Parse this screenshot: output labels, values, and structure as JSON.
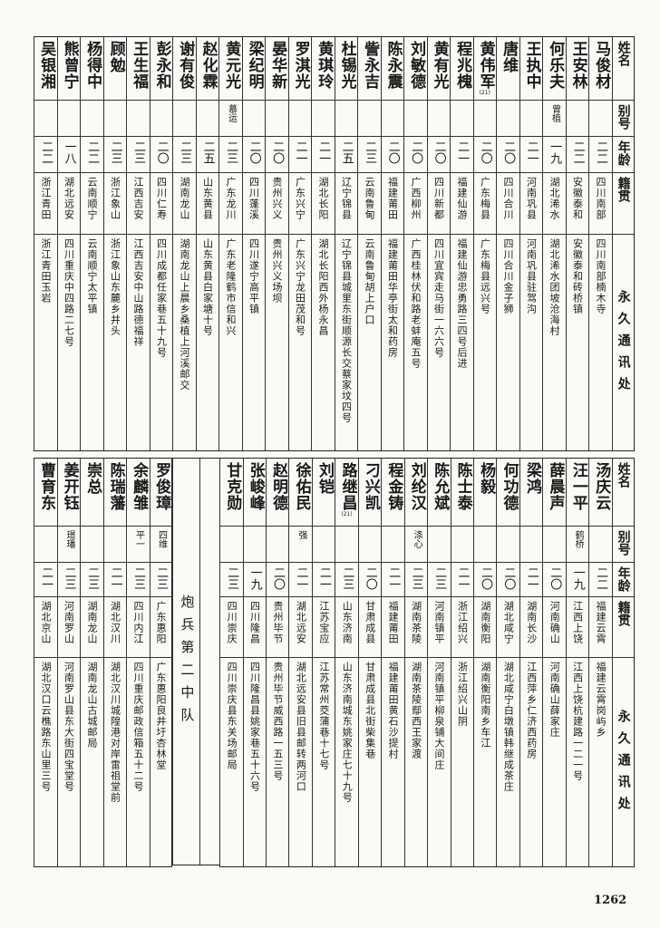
{
  "headers": {
    "name": "姓名",
    "alias": "别号",
    "age": "年龄",
    "origin": "籍贯",
    "address": "永久通讯处"
  },
  "top_table": [
    {
      "name": "马俊材",
      "alias": "",
      "age": "二二",
      "origin": "四川南部",
      "address": "四川南部楠木寺"
    },
    {
      "name": "王安林",
      "alias": "",
      "age": "二二",
      "origin": "安徽泰和",
      "address": "安徽泰和砖桥镇"
    },
    {
      "name": "何乐夫",
      "alias": "曾植",
      "age": "一九",
      "origin": "湖北浠水",
      "address": "湖北浠水团坡沧海村"
    },
    {
      "name": "王执中",
      "alias": "",
      "age": "二一",
      "origin": "河南巩县",
      "address": "河南巩县驻驾沟"
    },
    {
      "name": "唐维",
      "alias": "",
      "age": "二〇",
      "origin": "四川合川",
      "address": "四川合川金子狮"
    },
    {
      "name": "黄伟军",
      "note": "(21)",
      "alias": "",
      "age": "二〇",
      "origin": "广东梅县",
      "address": "广东梅县远兴号"
    },
    {
      "name": "程兆槐",
      "alias": "",
      "age": "二一",
      "origin": "福建仙游",
      "address": "福建仙游忠勇路三四号后进"
    },
    {
      "name": "黄有光",
      "alias": "",
      "age": "二〇",
      "origin": "四川新都",
      "address": "四川宜宾走马街一六六号"
    },
    {
      "name": "刘敏德",
      "alias": "",
      "age": "二〇",
      "origin": "广西柳州",
      "address": "广西桂林伏和路老蚌庵五号"
    },
    {
      "name": "陈永震",
      "alias": "",
      "age": "二〇",
      "origin": "福建莆田",
      "address": "福建莆田华亭街太和药房"
    },
    {
      "name": "訾永吉",
      "alias": "",
      "age": "二三",
      "origin": "云南鲁甸",
      "address": "云南鲁甸胡上户口"
    },
    {
      "name": "杜锡光",
      "alias": "",
      "age": "二五",
      "origin": "辽宁锦县",
      "address": "辽宁锦县城里东街顺源长交蔡家坟四号"
    },
    {
      "name": "黄琪玲",
      "alias": "",
      "age": "二一",
      "origin": "湖北长阳",
      "address": "湖北长阳西外杨永昌"
    },
    {
      "name": "罗淇光",
      "alias": "",
      "age": "二一",
      "origin": "广东兴宁",
      "address": "广东兴宁龙田茂和号"
    },
    {
      "name": "晏华新",
      "alias": "",
      "age": "二〇",
      "origin": "贵州兴义",
      "address": "贵州兴义场坝"
    },
    {
      "name": "梁纪明",
      "alias": "",
      "age": "二〇",
      "origin": "四川蓬溪",
      "address": "四川遂宁高平镇"
    },
    {
      "name": "黄元光",
      "alias": "慕运",
      "age": "二三",
      "origin": "广东龙川",
      "address": "广东老隆鹤市信和兴"
    },
    {
      "name": "赵化霖",
      "alias": "",
      "age": "二五",
      "origin": "山东黄县",
      "address": "山东黄县白家塘十号"
    },
    {
      "name": "谢有俊",
      "alias": "",
      "age": "二三",
      "origin": "湖南龙山",
      "address": "湖南龙山上晨乡桑植上河溪邮交"
    },
    {
      "name": "彭永和",
      "alias": "",
      "age": "二〇",
      "origin": "四川仁寿",
      "address": "四川成都任家巷五十九号"
    },
    {
      "name": "王生福",
      "alias": "",
      "age": "二三",
      "origin": "江西吉安",
      "address": "江西吉安中山路德福祥"
    },
    {
      "name": "顾勉",
      "alias": "",
      "age": "二三",
      "origin": "浙江象山",
      "address": "浙江象山东麓乡井头"
    },
    {
      "name": "杨得中",
      "alias": "",
      "age": "二二",
      "origin": "云南顺宁",
      "address": "云南顺宁太平镇"
    },
    {
      "name": "熊曾宁",
      "alias": "",
      "age": "一八",
      "origin": "湖北远安",
      "address": "四川重庆中四路二七号"
    },
    {
      "name": "吴银湘",
      "alias": "",
      "age": "二二",
      "origin": "浙江青田",
      "address": "浙江青田玉岩"
    }
  ],
  "bottom_right_table": [
    {
      "name": "汤庆云",
      "alias": "",
      "age": "二二",
      "origin": "福建云霄",
      "address": "福建云霄岗屿乡"
    },
    {
      "name": "汪一平",
      "alias": "鹤桥",
      "age": "一九",
      "origin": "江西上饶",
      "address": "江西上饶杭建路一二一号"
    },
    {
      "name": "薛晨声",
      "alias": "",
      "age": "二〇",
      "origin": "河南确山",
      "address": "河南确山薛家庄"
    },
    {
      "name": "梁鸿",
      "alias": "",
      "age": "二一",
      "origin": "湖南长沙",
      "address": "江西萍乡仁济西药房"
    },
    {
      "name": "何功德",
      "alias": "",
      "age": "二〇",
      "origin": "湖北咸宁",
      "address": "湖北咸宁白墩镇韩继成茶庄"
    },
    {
      "name": "杨毅",
      "alias": "",
      "age": "二〇",
      "origin": "湖南衡阳",
      "address": "湖南衡阳南乡车江"
    },
    {
      "name": "陈士泰",
      "alias": "",
      "age": "二一",
      "origin": "浙江绍兴",
      "address": "浙江绍兴山阴"
    },
    {
      "name": "陈允斌",
      "alias": "",
      "age": "二三",
      "origin": "河南镇平",
      "address": "河南镇平柳泉铺大间庄"
    },
    {
      "name": "刘纶汉",
      "alias": "涤心",
      "age": "二三",
      "origin": "湖南茶陵",
      "address": "湖南茶陵鄢西王家渡"
    },
    {
      "name": "程金铸",
      "alias": "",
      "age": "二一",
      "origin": "福建莆田",
      "address": "福建莆田黄石沙提村"
    },
    {
      "name": "刁兴凯",
      "alias": "",
      "age": "二〇",
      "origin": "甘肃成县",
      "address": "甘肃成县北街柴集巷"
    },
    {
      "name": "路继昌",
      "note": "(21)",
      "alias": "",
      "age": "二三",
      "origin": "山东济南",
      "address": "山东济南城东姚家庄七十九号"
    },
    {
      "name": "刘铠",
      "alias": "",
      "age": "二一",
      "origin": "江苏宝应",
      "address": "江苏常州茭蒲巷十七号"
    },
    {
      "name": "徐佑民",
      "alias": "强",
      "age": "二一",
      "origin": "湖北远安",
      "address": "湖北远安县旧县邮转两河口"
    },
    {
      "name": "赵明德",
      "alias": "",
      "age": "二〇",
      "origin": "贵州毕节",
      "address": "贵州毕节威西路一五三号"
    },
    {
      "name": "张峻峰",
      "alias": "",
      "age": "一九",
      "origin": "四川隆昌",
      "address": "四川隆昌县姚家巷五十六号"
    },
    {
      "name": "甘克勋",
      "alias": "",
      "age": "二三",
      "origin": "四川崇庆",
      "address": "四川崇庆县东关场邮局"
    }
  ],
  "section_title": "炮兵第二中队",
  "bottom_left_table": [
    {
      "name": "罗俊璋",
      "alias": "四维",
      "age": "二三",
      "origin": "广东惠阳",
      "address": "广东惠阳良井圩杏林堂"
    },
    {
      "name": "余麟雏",
      "alias": "平一",
      "age": "二三",
      "origin": "四川内江",
      "address": "四川重庆邮政信箱五十二号"
    },
    {
      "name": "陈瑞藩",
      "alias": "",
      "age": "二一",
      "origin": "湖北汉川",
      "address": "湖北汉川城隍港对岸雷祖堂前"
    },
    {
      "name": "崇总",
      "alias": "",
      "age": "二三",
      "origin": "湖南龙山",
      "address": "湖南龙山古城邮局"
    },
    {
      "name": "姜开钰",
      "alias": "璟璠",
      "age": "二三",
      "origin": "河南罗山",
      "address": "河南罗山县东大街四宝堂号"
    },
    {
      "name": "曹育东",
      "alias": "",
      "age": "二一",
      "origin": "湖北京山",
      "address": "湖北汉口云樵路东山里三号"
    }
  ],
  "page_number": "1262"
}
